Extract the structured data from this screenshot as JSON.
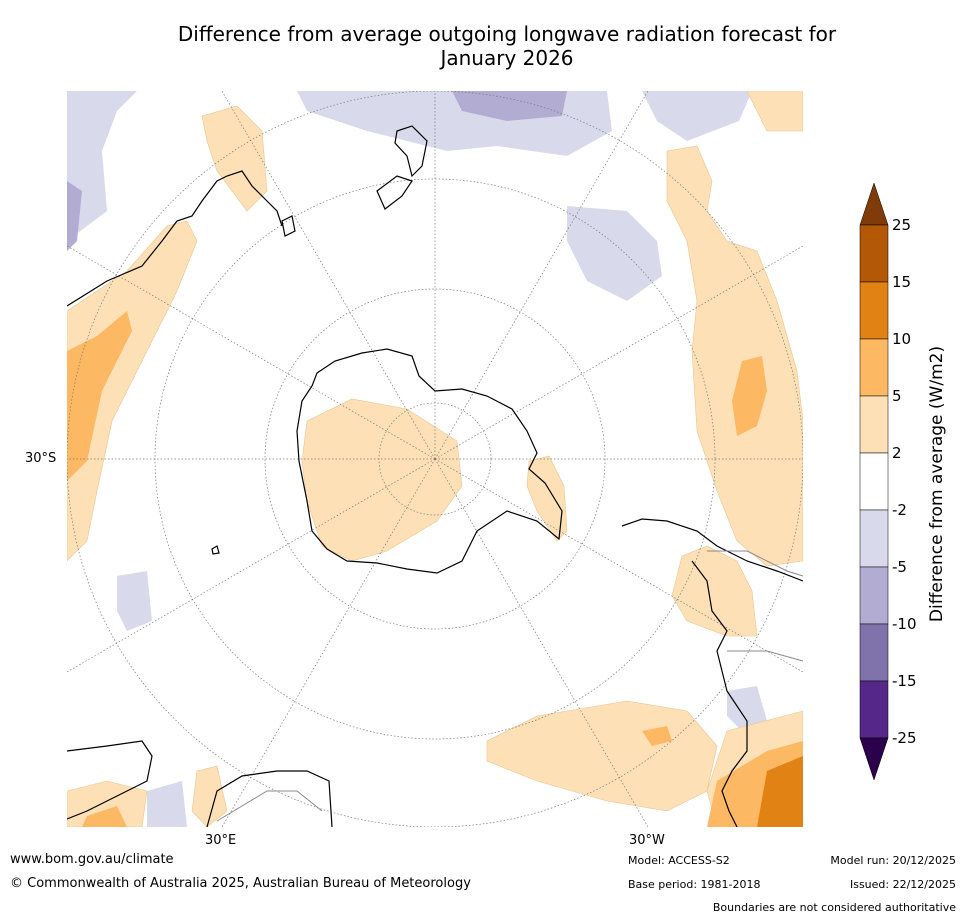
{
  "title": {
    "line1": "Difference from average outgoing longwave radiation forecast for",
    "line2": "January 2026"
  },
  "map": {
    "projection": "south polar stereographic",
    "lat_label": "30°S",
    "lon_labels": {
      "east": "30°E",
      "west": "30°W"
    }
  },
  "legend": {
    "label": "Difference from average (W/m2)",
    "ticks": [
      "25",
      "15",
      "10",
      "5",
      "2",
      "-2",
      "-5",
      "-10",
      "-15",
      "-25"
    ],
    "colors": {
      "above_25": "#7f3b08",
      "15_to_25": "#b35806",
      "10_to_15": "#e08214",
      "5_to_10": "#fdb863",
      "2_to_5": "#fee0b6",
      "neutral": "#ffffff",
      "minus2_to_minus5": "#d8daeb",
      "minus5_to_minus10": "#b2abd2",
      "minus10_to_minus15": "#8073ac",
      "minus15_to_minus25": "#542788",
      "below_minus25": "#2d004b"
    }
  },
  "footer": {
    "website": "www.bom.gov.au/climate",
    "copyright": "© Commonwealth of Australia 2025, Australian Bureau of Meteorology",
    "model": "Model: ACCESS-S2",
    "base_period": "Base period: 1981-2018",
    "model_run": "Model run: 20/12/2025",
    "issued": "Issued: 22/12/2025",
    "disclaimer": "Boundaries are not considered authoritative"
  }
}
